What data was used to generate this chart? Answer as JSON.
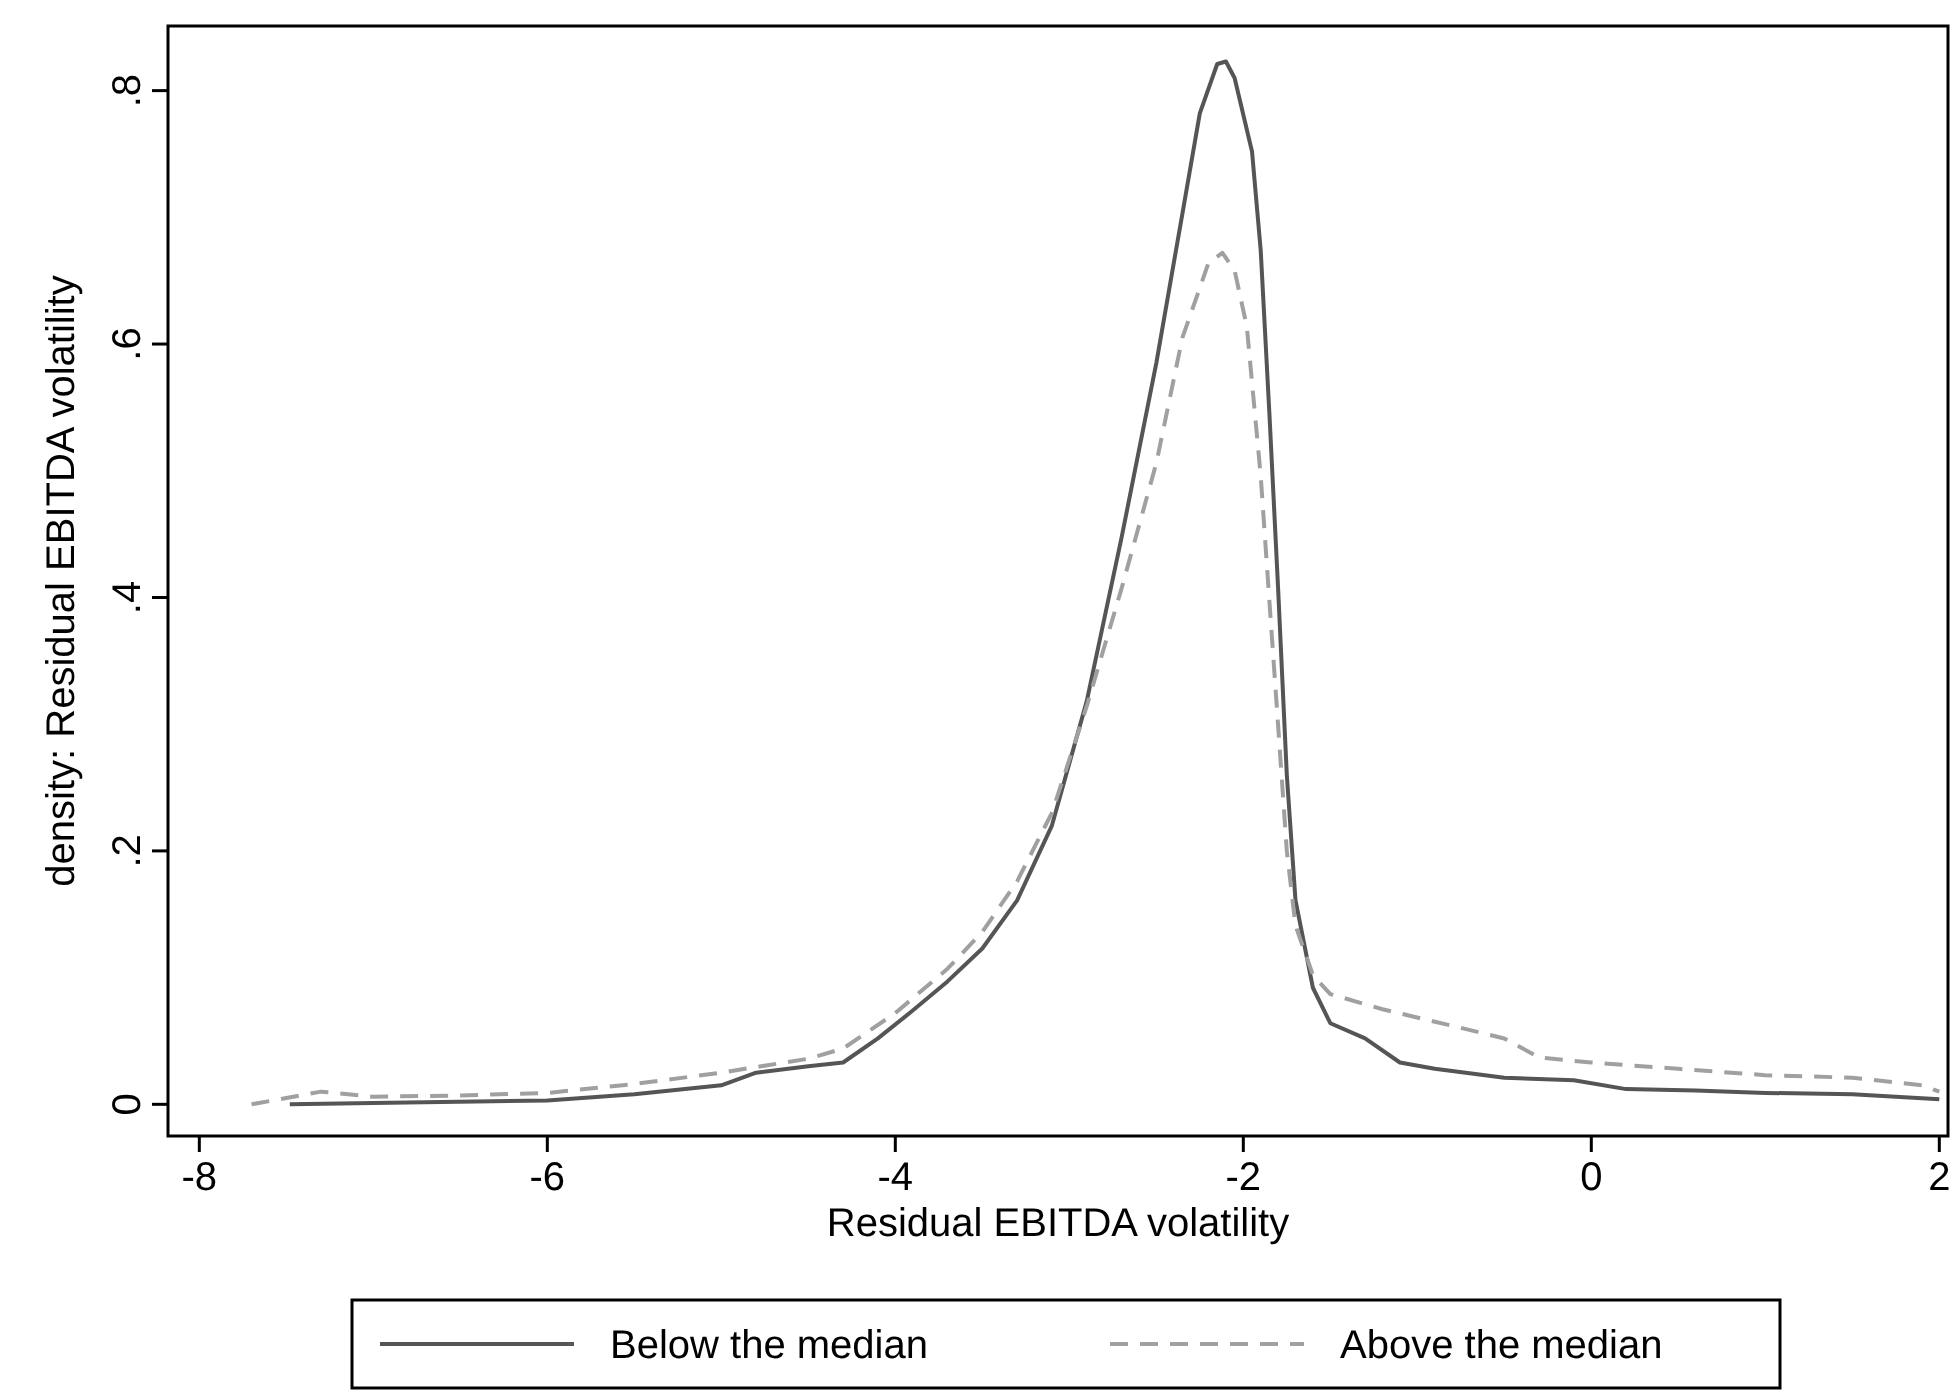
{
  "chart_data": {
    "type": "line",
    "xlabel": "Residual EBITDA volatility",
    "ylabel": "density: Residual EBITDA volatility",
    "xlim": [
      -8.18,
      2.05
    ],
    "ylim": [
      -0.025,
      0.851
    ],
    "xticks": [
      -8,
      -6,
      -4,
      -2,
      0,
      2
    ],
    "yticks": [
      {
        "value": 0,
        "label": "0"
      },
      {
        "value": 0.2,
        "label": ".2"
      },
      {
        "value": 0.4,
        "label": ".4"
      },
      {
        "value": 0.6,
        "label": ".6"
      },
      {
        "value": 0.8,
        "label": ".8"
      }
    ],
    "grid": false,
    "legend": "bottom",
    "marker": "none",
    "series": [
      {
        "name": "Below the median",
        "color": "#555555",
        "line_style": "solid",
        "x": [
          -7.48,
          -7,
          -6,
          -5.5,
          -5,
          -4.8,
          -4.5,
          -4.3,
          -4.1,
          -3.9,
          -3.7,
          -3.5,
          -3.3,
          -3.1,
          -2.9,
          -2.7,
          -2.5,
          -2.35,
          -2.25,
          -2.15,
          -2.1,
          -2.05,
          -1.95,
          -1.9,
          -1.85,
          -1.8,
          -1.75,
          -1.7,
          -1.6,
          -1.5,
          -1.3,
          -1.1,
          -0.9,
          -0.5,
          -0.1,
          0.2,
          0.6,
          1,
          1.5,
          2
        ],
        "values": [
          0,
          0.001,
          0.003,
          0.008,
          0.015,
          0.025,
          0.03,
          0.033,
          0.052,
          0.074,
          0.097,
          0.123,
          0.161,
          0.22,
          0.318,
          0.447,
          0.585,
          0.703,
          0.782,
          0.821,
          0.823,
          0.81,
          0.752,
          0.674,
          0.545,
          0.407,
          0.26,
          0.161,
          0.092,
          0.064,
          0.052,
          0.033,
          0.028,
          0.021,
          0.019,
          0.012,
          0.011,
          0.009,
          0.008,
          0.004
        ]
      },
      {
        "name": "Above the median",
        "color": "#a0a0a0",
        "line_style": "dashed",
        "x": [
          -7.7,
          -7.3,
          -7,
          -6.5,
          -6,
          -5.5,
          -5,
          -4.5,
          -4.3,
          -4,
          -3.7,
          -3.5,
          -3.3,
          -3.1,
          -2.9,
          -2.7,
          -2.5,
          -2.35,
          -2.2,
          -2.12,
          -2.05,
          -1.98,
          -1.9,
          -1.85,
          -1.8,
          -1.75,
          -1.7,
          -1.6,
          -1.5,
          -1.2,
          -0.8,
          -0.5,
          -0.3,
          0,
          0.5,
          1,
          1.5,
          1.9,
          2
        ],
        "values": [
          0,
          0.01,
          0.006,
          0.007,
          0.009,
          0.016,
          0.025,
          0.036,
          0.044,
          0.072,
          0.107,
          0.136,
          0.176,
          0.23,
          0.314,
          0.407,
          0.506,
          0.605,
          0.664,
          0.672,
          0.658,
          0.614,
          0.496,
          0.397,
          0.299,
          0.2,
          0.141,
          0.102,
          0.087,
          0.075,
          0.062,
          0.052,
          0.037,
          0.033,
          0.028,
          0.023,
          0.021,
          0.015,
          0.01
        ]
      }
    ]
  }
}
